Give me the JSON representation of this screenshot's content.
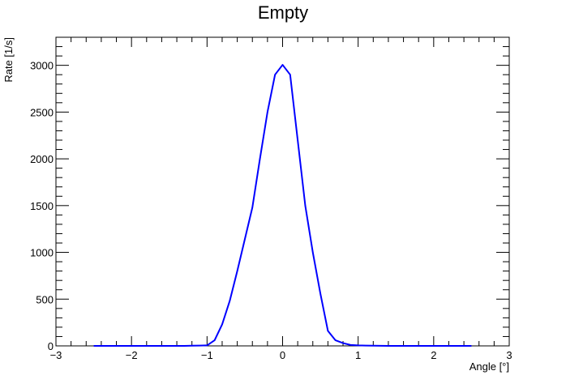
{
  "chart_data": {
    "type": "line",
    "title": "Empty",
    "xlabel": "Angle [°]",
    "ylabel": "Rate [1/s]",
    "xlim": [
      -3,
      3
    ],
    "ylim": [
      0,
      3300
    ],
    "x_ticks": [
      "−3",
      "−2",
      "−1",
      "0",
      "1",
      "2",
      "3"
    ],
    "x_tick_values": [
      -3,
      -2,
      -1,
      0,
      1,
      2,
      3
    ],
    "y_ticks": [
      "0",
      "500",
      "1000",
      "1500",
      "2000",
      "2500",
      "3000"
    ],
    "y_tick_values": [
      0,
      500,
      1000,
      1500,
      2000,
      2500,
      3000
    ],
    "grid": false,
    "line_color": "#0000ff",
    "series": [
      {
        "x": [
          -2.5,
          -2.4,
          -2.3,
          -2.2,
          -2.1,
          -2.0,
          -1.9,
          -1.8,
          -1.7,
          -1.6,
          -1.5,
          -1.4,
          -1.3,
          -1.2,
          -1.1,
          -1.0,
          -0.9,
          -0.8,
          -0.7,
          -0.6,
          -0.5,
          -0.4,
          -0.3,
          -0.2,
          -0.1,
          0.0,
          0.1,
          0.2,
          0.3,
          0.4,
          0.5,
          0.6,
          0.7,
          0.8,
          0.9,
          1.0,
          1.1,
          1.2,
          1.3,
          1.4,
          1.5,
          1.6,
          1.7,
          1.8,
          1.9,
          2.0,
          2.1,
          2.2,
          2.3,
          2.4,
          2.5
        ],
        "values": [
          0,
          0,
          0,
          0,
          0,
          0,
          0,
          0,
          0,
          0,
          0,
          0,
          0,
          2,
          3,
          5,
          60,
          230,
          480,
          800,
          1140,
          1480,
          2000,
          2500,
          2900,
          3005,
          2900,
          2200,
          1500,
          1000,
          560,
          160,
          60,
          30,
          10,
          5,
          3,
          2,
          1,
          0,
          0,
          0,
          0,
          0,
          0,
          0,
          0,
          0,
          0,
          0,
          0
        ]
      }
    ]
  }
}
